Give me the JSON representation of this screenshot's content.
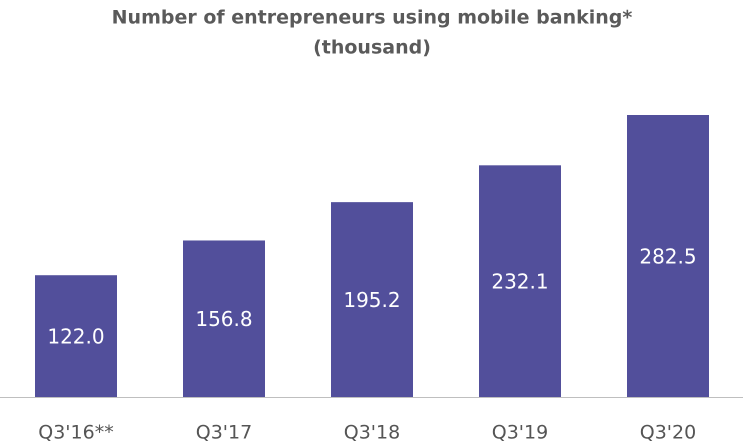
{
  "chart_data": {
    "type": "bar",
    "title": [
      "Number of entrepreneurs using mobile banking*",
      "(thousand)"
    ],
    "categories": [
      "Q3'16**",
      "Q3'17",
      "Q3'18",
      "Q3'19",
      "Q3'20"
    ],
    "values": [
      122.0,
      156.8,
      195.2,
      232.1,
      282.5
    ],
    "value_labels": [
      "122.0",
      "156.8",
      "195.2",
      "232.1",
      "282.5"
    ],
    "color": "#524f9b"
  }
}
